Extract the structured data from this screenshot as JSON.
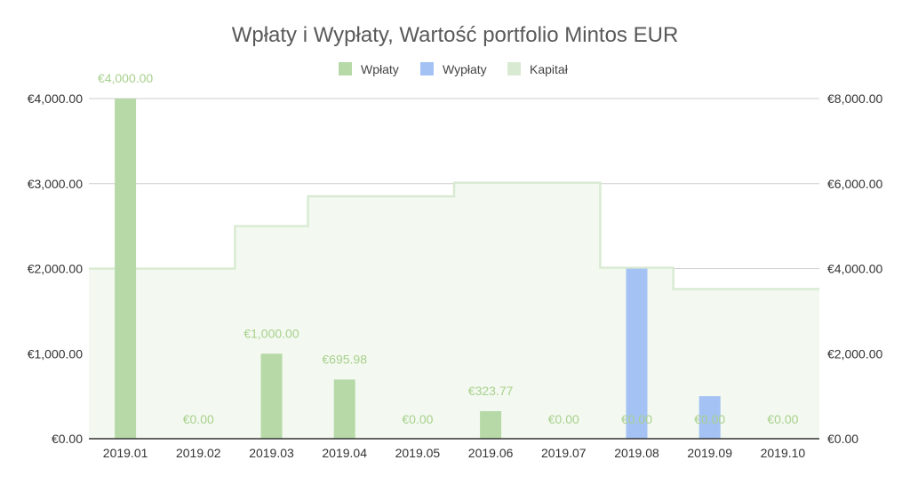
{
  "chart_data": {
    "type": "bar",
    "title": "Wpłaty i Wypłaty, Wartość portfolio  Mintos EUR",
    "categories": [
      "2019.01",
      "2019.02",
      "2019.03",
      "2019.04",
      "2019.05",
      "2019.06",
      "2019.07",
      "2019.08",
      "2019.09",
      "2019.10"
    ],
    "series": [
      {
        "name": "Wpłaty",
        "kind": "bar",
        "axis": "left",
        "color": "#b7d9a8",
        "values": [
          4000,
          0,
          1000,
          695.98,
          0,
          323.77,
          0,
          0,
          0,
          0
        ],
        "data_labels": [
          "€4,000.00",
          "€0.00",
          "€1,000.00",
          "€695.98",
          "€0.00",
          "€323.77",
          "€0.00",
          "€0.00",
          "€0.00",
          "€0.00"
        ]
      },
      {
        "name": "Wypłaty",
        "kind": "bar",
        "axis": "left",
        "color": "#a4c2f4",
        "values": [
          0,
          0,
          0,
          0,
          0,
          0,
          0,
          2000,
          500,
          0
        ]
      },
      {
        "name": "Kapitał",
        "kind": "stepped-area",
        "axis": "right",
        "color": "#d9ead3",
        "values": [
          4000,
          4000,
          5000,
          5700,
          5700,
          6020,
          6020,
          4020,
          3520,
          3520
        ]
      }
    ],
    "y_left": {
      "min": 0,
      "max": 4000,
      "ticks": [
        0,
        1000,
        2000,
        3000,
        4000
      ],
      "tick_labels": [
        "€0.00",
        "€1,000.00",
        "€2,000.00",
        "€3,000.00",
        "€4,000.00"
      ]
    },
    "y_right": {
      "min": 0,
      "max": 8000,
      "ticks": [
        0,
        2000,
        4000,
        6000,
        8000
      ],
      "tick_labels": [
        "€0.00",
        "€2,000.00",
        "€4,000.00",
        "€6,000.00",
        "€8,000.00"
      ]
    },
    "legend_position": "top",
    "gridlines": true,
    "label_color": "#a8d08d"
  }
}
